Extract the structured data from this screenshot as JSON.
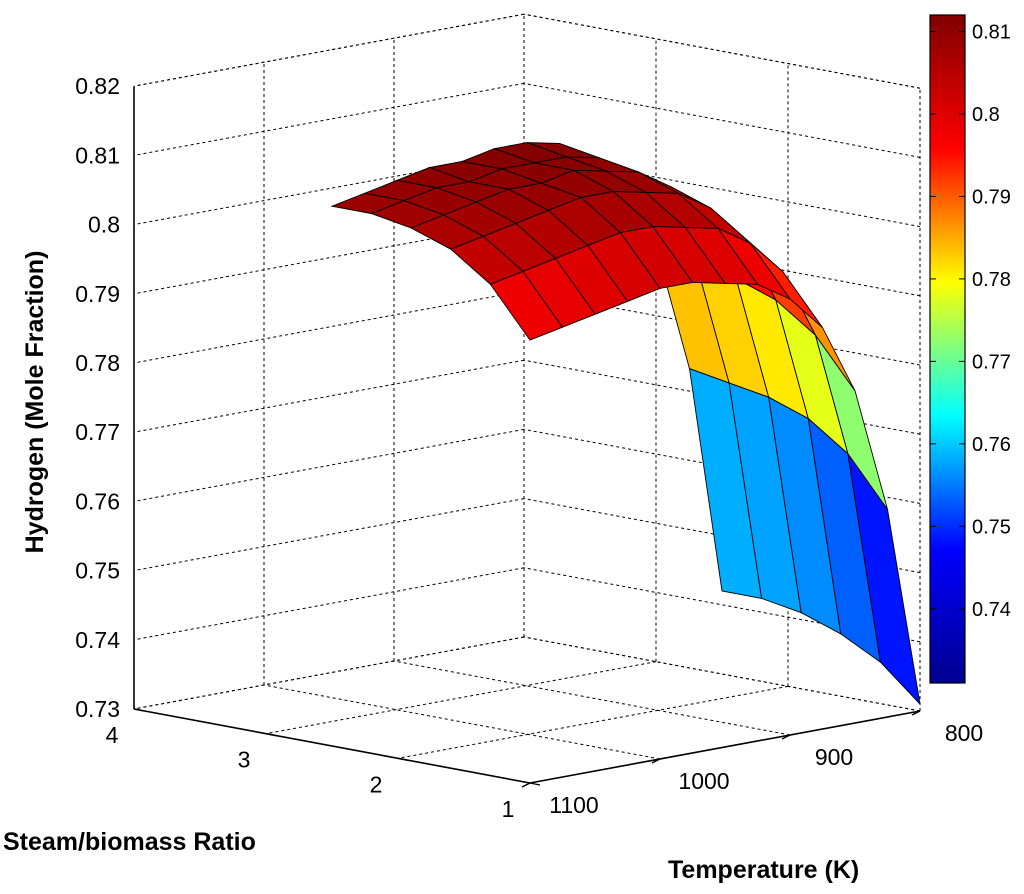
{
  "chart_data": {
    "type": "surface",
    "title": "",
    "zlabel": "Hydrogen (Mole Fraction)",
    "xlabel": "Temperature (K)",
    "ylabel": "Steam/biomass Ratio",
    "zticks": [
      "0.73",
      "0.74",
      "0.75",
      "0.76",
      "0.77",
      "0.78",
      "0.79",
      "0.8",
      "0.81",
      "0.82"
    ],
    "zlim": [
      0.73,
      0.82
    ],
    "temperature_ticks": [
      "800",
      "900",
      "1000",
      "1100"
    ],
    "temperature_range": [
      800,
      1100
    ],
    "ratio_ticks": [
      "1",
      "2",
      "3",
      "4"
    ],
    "ratio_range": [
      1,
      4
    ],
    "colorbar": {
      "ticks": [
        "0.74",
        "0.75",
        "0.76",
        "0.77",
        "0.78",
        "0.79",
        "0.8",
        "0.81"
      ],
      "range": [
        0.731,
        0.812
      ],
      "colormap": [
        "#00008f",
        "#0000ff",
        "#00ffff",
        "#ffff00",
        "#ff0000",
        "#800000"
      ]
    },
    "surface": {
      "temperature": [
        800,
        825,
        850,
        875,
        900,
        925,
        950,
        975,
        1000,
        1025,
        1050,
        1075,
        1100
      ],
      "ratio": [
        1.0,
        1.3,
        1.6,
        1.9,
        2.2,
        2.5
      ],
      "hydrogen_fraction": [
        [
          0.731,
          0.76,
          0.778,
          0.788,
          0.793,
          0.796,
          0.797,
          0.798,
          0.798,
          0.797,
          0.796,
          0.795,
          0.794
        ],
        [
          0.736,
          0.767,
          0.785,
          0.795,
          0.8,
          0.803,
          0.804,
          0.805,
          0.805,
          0.804,
          0.803,
          0.802,
          0.801
        ],
        [
          0.739,
          0.771,
          0.789,
          0.799,
          0.804,
          0.807,
          0.808,
          0.809,
          0.809,
          0.808,
          0.807,
          0.806,
          0.805
        ],
        [
          0.741,
          0.773,
          0.791,
          0.801,
          0.806,
          0.809,
          0.81,
          0.811,
          0.81,
          0.81,
          0.809,
          0.808,
          0.807
        ],
        [
          0.742,
          0.774,
          0.792,
          0.802,
          0.807,
          0.81,
          0.811,
          0.811,
          0.811,
          0.81,
          0.81,
          0.809,
          0.808
        ],
        [
          0.742,
          0.775,
          0.793,
          0.803,
          0.808,
          0.811,
          0.812,
          0.812,
          0.811,
          0.811,
          0.81,
          0.809,
          0.808
        ]
      ]
    }
  }
}
